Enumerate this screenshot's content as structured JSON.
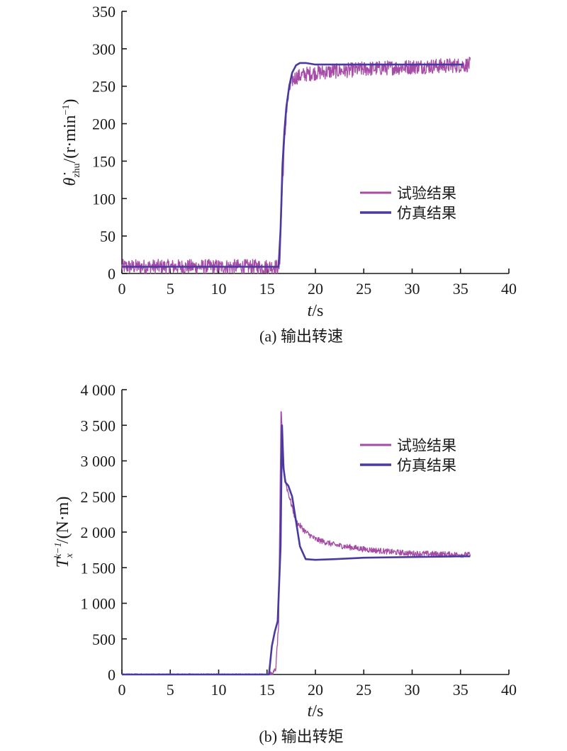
{
  "colors": {
    "test": "#a64ca6",
    "sim": "#4a3aa0",
    "axis": "#1a1a1a"
  },
  "chart_data": [
    {
      "type": "line",
      "caption": "(a) 输出转速",
      "ylabel_main": "θ̇",
      "ylabel_sub": "zhu",
      "ylabel_unit": "/(r·min",
      "ylabel_exp": "−1",
      "ylabel_close": ")",
      "xlabel_var": "t",
      "xlabel_unit": "/s",
      "xlim": [
        0,
        40
      ],
      "ylim": [
        0,
        350
      ],
      "xticks": [
        0,
        5,
        10,
        15,
        20,
        25,
        30,
        35,
        40
      ],
      "yticks": [
        0,
        50,
        100,
        150,
        200,
        250,
        300,
        350
      ],
      "xtick_labels": [
        "0",
        "5",
        "10",
        "15",
        "20",
        "25",
        "30",
        "35",
        "40"
      ],
      "ytick_labels": [
        "0",
        "50",
        "100",
        "150",
        "200",
        "250",
        "300",
        "350"
      ],
      "legend_position": "center-right",
      "series": [
        {
          "name": "试验结果",
          "noise": 10,
          "x": [
            0,
            5,
            10,
            15,
            16.3,
            16.6,
            16.8,
            17.0,
            17.3,
            17.6,
            18.0,
            18.5,
            19,
            20,
            22,
            25,
            30,
            35,
            36
          ],
          "y": [
            9,
            9,
            9,
            9,
            9,
            120,
            170,
            215,
            245,
            258,
            262,
            264,
            266,
            268,
            270,
            273,
            276,
            278,
            279
          ]
        },
        {
          "name": "仿真结果",
          "noise": 0,
          "x": [
            0,
            16.2,
            16.4,
            16.6,
            16.8,
            17.0,
            17.3,
            17.6,
            18.0,
            18.4,
            19,
            20,
            25,
            30,
            35.3
          ],
          "y": [
            9,
            9,
            60,
            145,
            190,
            222,
            250,
            268,
            278,
            281,
            281,
            279,
            279,
            279,
            279
          ]
        }
      ]
    },
    {
      "type": "line",
      "caption": "(b) 输出转矩",
      "ylabel_main": "T",
      "ylabel_sub": "x",
      "ylabel_sup": "k−1",
      "ylabel_unit": "/(N·m)",
      "xlabel_var": "t",
      "xlabel_unit": "/s",
      "xlim": [
        0,
        40
      ],
      "ylim": [
        0,
        4000
      ],
      "xticks": [
        0,
        5,
        10,
        15,
        20,
        25,
        30,
        35,
        40
      ],
      "yticks": [
        0,
        500,
        1000,
        1500,
        2000,
        2500,
        3000,
        3500,
        4000
      ],
      "xtick_labels": [
        "0",
        "5",
        "10",
        "15",
        "20",
        "25",
        "30",
        "35",
        "40"
      ],
      "ytick_labels": [
        "0",
        "500",
        "1 000",
        "1 500",
        "2 000",
        "2 500",
        "3 000",
        "3 500",
        "4 000"
      ],
      "legend_position": "top-right",
      "series": [
        {
          "name": "试验结果",
          "noise": 40,
          "x": [
            0,
            15.0,
            15.6,
            15.9,
            16.2,
            16.45,
            16.6,
            16.8,
            17.0,
            17.3,
            17.6,
            18.0,
            19,
            20,
            22,
            25,
            28,
            30,
            33,
            36
          ],
          "y": [
            0,
            0,
            0,
            80,
            700,
            3800,
            3300,
            2800,
            2650,
            2500,
            2350,
            2150,
            2000,
            1900,
            1820,
            1760,
            1720,
            1700,
            1690,
            1680
          ]
        },
        {
          "name": "仿真结果",
          "noise": 0,
          "x": [
            0,
            15.2,
            15.5,
            15.8,
            16.1,
            16.4,
            16.55,
            16.7,
            16.9,
            17.2,
            17.6,
            18.0,
            18.4,
            19,
            20,
            22,
            25,
            30,
            35,
            36
          ],
          "y": [
            0,
            0,
            400,
            600,
            750,
            1800,
            3500,
            2900,
            2700,
            2650,
            2500,
            2150,
            1800,
            1620,
            1610,
            1620,
            1640,
            1650,
            1660,
            1660
          ]
        }
      ]
    }
  ]
}
